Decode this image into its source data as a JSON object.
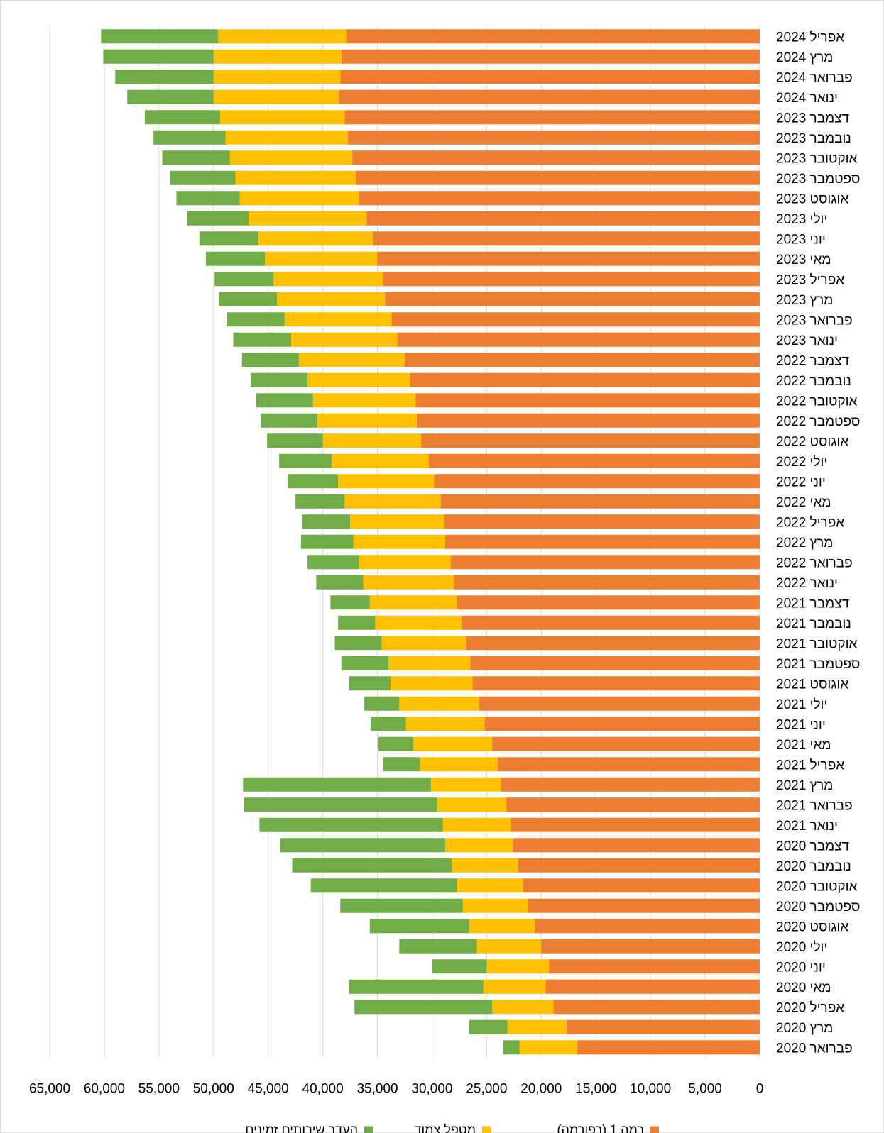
{
  "chart_data": {
    "type": "bar",
    "orientation": "horizontal",
    "stacked": true,
    "x_reversed": true,
    "categories": [
      "אפריל 2024",
      "מרץ 2024",
      "פברואר 2024",
      "ינואר 2024",
      "דצמבר 2023",
      "נובמבר 2023",
      "אוקטובר 2023",
      "ספטמבר 2023",
      "אוגוסט 2023",
      "יולי 2023",
      "יוני 2023",
      "מאי 2023",
      "אפריל 2023",
      "מרץ 2023",
      "פברואר 2023",
      "ינואר 2023",
      "דצמבר 2022",
      "נובמבר 2022",
      "אוקטובר 2022",
      "ספטמבר 2022",
      "אוגוסט 2022",
      "יולי 2022",
      "יוני 2022",
      "מאי 2022",
      "אפריל 2022",
      "מרץ 2022",
      "פברואר 2022",
      "ינואר 2022",
      "דצמבר 2021",
      "נובמבר 2021",
      "אוקטובר 2021",
      "ספטמבר 2021",
      "אוגוסט 2021",
      "יולי 2021",
      "יוני 2021",
      "מאי 2021",
      "אפריל 2021",
      "מרץ 2021",
      "פברואר 2021",
      "ינואר 2021",
      "דצמבר 2020",
      "נובמבר 2020",
      "אוקטובר 2020",
      "ספטמבר 2020",
      "אוגוסט 2020",
      "יולי 2020",
      "יוני 2020",
      "מאי 2020",
      "אפריל 2020",
      "מרץ 2020",
      "פברואר 2020"
    ],
    "series": [
      {
        "name": "רמה 1 (רפורמה)",
        "color": "#ED7D31",
        "values": [
          37800,
          38300,
          38400,
          38500,
          38000,
          37700,
          37300,
          37000,
          36700,
          36000,
          35400,
          35000,
          34500,
          34300,
          33700,
          33200,
          32500,
          32000,
          31500,
          31400,
          31000,
          30300,
          29800,
          29200,
          28900,
          28800,
          28300,
          28000,
          27700,
          27300,
          26900,
          26500,
          26300,
          25700,
          25200,
          24500,
          24000,
          23700,
          23200,
          22800,
          22600,
          22100,
          21700,
          21200,
          20600,
          20000,
          19300,
          19600,
          18900,
          17700,
          16700
        ]
      },
      {
        "name": "מטפל צמוד",
        "color": "#FFC000",
        "values": [
          11800,
          11700,
          11600,
          11500,
          11400,
          11200,
          11200,
          11000,
          10900,
          10800,
          10500,
          10300,
          10000,
          9900,
          9800,
          9700,
          9700,
          9400,
          9400,
          9100,
          9000,
          8900,
          8800,
          8800,
          8600,
          8400,
          8400,
          8300,
          8000,
          7900,
          7700,
          7500,
          7500,
          7300,
          7200,
          7200,
          7100,
          6400,
          6300,
          6200,
          6200,
          6100,
          6000,
          6000,
          6000,
          5900,
          5700,
          5700,
          5600,
          5400,
          5300
        ]
      },
      {
        "name": "העדר שירותים זמינים",
        "color": "#70AD47",
        "values": [
          10700,
          10100,
          9000,
          7900,
          6900,
          6600,
          6200,
          6000,
          5800,
          5600,
          5400,
          5400,
          5400,
          5300,
          5300,
          5300,
          5200,
          5200,
          5200,
          5200,
          5100,
          4800,
          4600,
          4500,
          4400,
          4800,
          4700,
          4300,
          3600,
          3400,
          4300,
          4300,
          3800,
          3200,
          3200,
          3200,
          3400,
          17200,
          17700,
          16800,
          15100,
          14600,
          13400,
          11200,
          9100,
          7100,
          5000,
          12300,
          12600,
          3500,
          1500
        ]
      }
    ],
    "xlim": [
      0,
      65000
    ],
    "x_ticks": [
      "65,000",
      "60,000",
      "55,000",
      "50,000",
      "45,000",
      "40,000",
      "35,000",
      "30,000",
      "25,000",
      "20,000",
      "15,000",
      "10,000",
      "5,000",
      "0"
    ],
    "grid": "vertical",
    "legend_position": "bottom"
  }
}
